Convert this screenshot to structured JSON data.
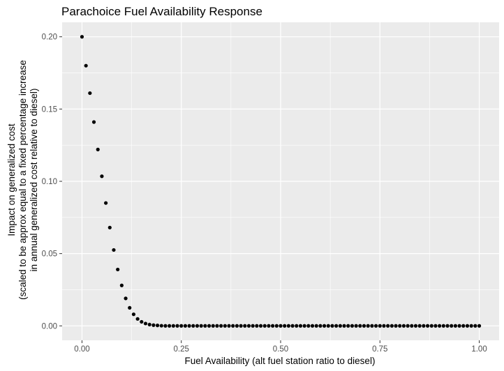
{
  "chart_data": {
    "type": "scatter",
    "title": "Parachoice Fuel Availability Response",
    "xlabel": "Fuel Availability (alt fuel station ratio to diesel)",
    "ylabel_lines": [
      "Impact on generalized cost",
      "(scaled to be approx equal to a fixed percentage increase",
      "in annual generalized cost relative to diesel)"
    ],
    "xlim": [
      -0.05,
      1.05
    ],
    "ylim": [
      -0.01,
      0.21
    ],
    "x_ticks": [
      0,
      0.25,
      0.5,
      0.75,
      1
    ],
    "x_tick_labels": [
      "0.00",
      "0.25",
      "0.50",
      "0.75",
      "1.00"
    ],
    "y_ticks": [
      0,
      0.05,
      0.1,
      0.15,
      0.2
    ],
    "y_tick_labels": [
      "0.00",
      "0.05",
      "0.10",
      "0.15",
      "0.20"
    ],
    "grid": true,
    "panel_background": "#ebebeb",
    "grid_color": "#ffffff",
    "point_color": "#000000",
    "points": [
      {
        "x": 0.0,
        "y": 0.2
      },
      {
        "x": 0.01,
        "y": 0.18
      },
      {
        "x": 0.02,
        "y": 0.161
      },
      {
        "x": 0.03,
        "y": 0.141
      },
      {
        "x": 0.04,
        "y": 0.122
      },
      {
        "x": 0.05,
        "y": 0.1035
      },
      {
        "x": 0.06,
        "y": 0.085
      },
      {
        "x": 0.07,
        "y": 0.068
      },
      {
        "x": 0.08,
        "y": 0.0525
      },
      {
        "x": 0.09,
        "y": 0.039
      },
      {
        "x": 0.1,
        "y": 0.028
      },
      {
        "x": 0.11,
        "y": 0.019
      },
      {
        "x": 0.12,
        "y": 0.0125
      },
      {
        "x": 0.13,
        "y": 0.008
      },
      {
        "x": 0.14,
        "y": 0.0048
      },
      {
        "x": 0.15,
        "y": 0.0028
      },
      {
        "x": 0.16,
        "y": 0.0016
      },
      {
        "x": 0.17,
        "y": 0.0009
      },
      {
        "x": 0.18,
        "y": 0.0005
      },
      {
        "x": 0.19,
        "y": 0.0003
      },
      {
        "x": 0.2,
        "y": 0.0001
      },
      {
        "x": 0.21,
        "y": 0
      },
      {
        "x": 0.22,
        "y": 0
      },
      {
        "x": 0.23,
        "y": 0
      },
      {
        "x": 0.24,
        "y": 0
      },
      {
        "x": 0.25,
        "y": 0
      },
      {
        "x": 0.26,
        "y": 0
      },
      {
        "x": 0.27,
        "y": 0
      },
      {
        "x": 0.28,
        "y": 0
      },
      {
        "x": 0.29,
        "y": 0
      },
      {
        "x": 0.3,
        "y": 0
      },
      {
        "x": 0.31,
        "y": 0
      },
      {
        "x": 0.32,
        "y": 0
      },
      {
        "x": 0.33,
        "y": 0
      },
      {
        "x": 0.34,
        "y": 0
      },
      {
        "x": 0.35,
        "y": 0
      },
      {
        "x": 0.36,
        "y": 0
      },
      {
        "x": 0.37,
        "y": 0
      },
      {
        "x": 0.38,
        "y": 0
      },
      {
        "x": 0.39,
        "y": 0
      },
      {
        "x": 0.4,
        "y": 0
      },
      {
        "x": 0.41,
        "y": 0
      },
      {
        "x": 0.42,
        "y": 0
      },
      {
        "x": 0.43,
        "y": 0
      },
      {
        "x": 0.44,
        "y": 0
      },
      {
        "x": 0.45,
        "y": 0
      },
      {
        "x": 0.46,
        "y": 0
      },
      {
        "x": 0.47,
        "y": 0
      },
      {
        "x": 0.48,
        "y": 0
      },
      {
        "x": 0.49,
        "y": 0
      },
      {
        "x": 0.5,
        "y": 0
      },
      {
        "x": 0.51,
        "y": 0
      },
      {
        "x": 0.52,
        "y": 0
      },
      {
        "x": 0.53,
        "y": 0
      },
      {
        "x": 0.54,
        "y": 0
      },
      {
        "x": 0.55,
        "y": 0
      },
      {
        "x": 0.56,
        "y": 0
      },
      {
        "x": 0.57,
        "y": 0
      },
      {
        "x": 0.58,
        "y": 0
      },
      {
        "x": 0.59,
        "y": 0
      },
      {
        "x": 0.6,
        "y": 0
      },
      {
        "x": 0.61,
        "y": 0
      },
      {
        "x": 0.62,
        "y": 0
      },
      {
        "x": 0.63,
        "y": 0
      },
      {
        "x": 0.64,
        "y": 0
      },
      {
        "x": 0.65,
        "y": 0
      },
      {
        "x": 0.66,
        "y": 0
      },
      {
        "x": 0.67,
        "y": 0
      },
      {
        "x": 0.68,
        "y": 0
      },
      {
        "x": 0.69,
        "y": 0
      },
      {
        "x": 0.7,
        "y": 0
      },
      {
        "x": 0.71,
        "y": 0
      },
      {
        "x": 0.72,
        "y": 0
      },
      {
        "x": 0.73,
        "y": 0
      },
      {
        "x": 0.74,
        "y": 0
      },
      {
        "x": 0.75,
        "y": 0
      },
      {
        "x": 0.76,
        "y": 0
      },
      {
        "x": 0.77,
        "y": 0
      },
      {
        "x": 0.78,
        "y": 0
      },
      {
        "x": 0.79,
        "y": 0
      },
      {
        "x": 0.8,
        "y": 0
      },
      {
        "x": 0.81,
        "y": 0
      },
      {
        "x": 0.82,
        "y": 0
      },
      {
        "x": 0.83,
        "y": 0
      },
      {
        "x": 0.84,
        "y": 0
      },
      {
        "x": 0.85,
        "y": 0
      },
      {
        "x": 0.86,
        "y": 0
      },
      {
        "x": 0.87,
        "y": 0
      },
      {
        "x": 0.88,
        "y": 0
      },
      {
        "x": 0.89,
        "y": 0
      },
      {
        "x": 0.9,
        "y": 0
      },
      {
        "x": 0.91,
        "y": 0
      },
      {
        "x": 0.92,
        "y": 0
      },
      {
        "x": 0.93,
        "y": 0
      },
      {
        "x": 0.94,
        "y": 0
      },
      {
        "x": 0.95,
        "y": 0
      },
      {
        "x": 0.96,
        "y": 0
      },
      {
        "x": 0.97,
        "y": 0
      },
      {
        "x": 0.98,
        "y": 0
      },
      {
        "x": 0.99,
        "y": 0
      },
      {
        "x": 1.0,
        "y": 0
      }
    ]
  }
}
